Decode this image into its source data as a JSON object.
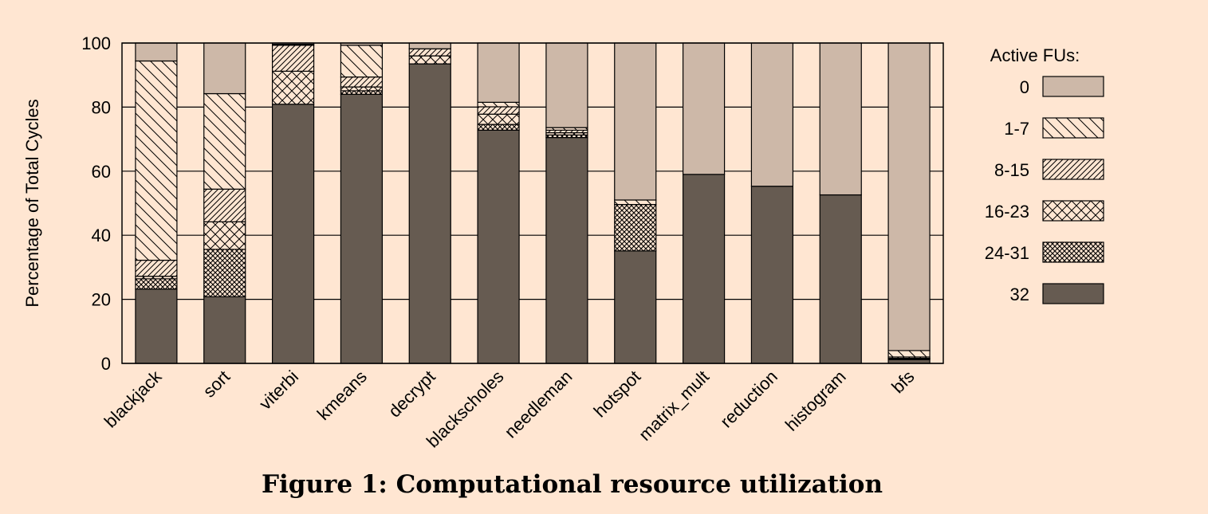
{
  "figure": {
    "caption": "Figure 1: Computational resource utilization"
  },
  "colors": {
    "background": "#ffe6d2",
    "zero": "#cdb8a8",
    "full": "#665b51",
    "line": "#000000"
  },
  "chart_data": {
    "type": "bar",
    "stacked": true,
    "title": "",
    "xlabel": "",
    "ylabel": "Percentage of Total Cycles",
    "ylim": [
      0,
      100
    ],
    "yticks": [
      0,
      20,
      40,
      60,
      80,
      100
    ],
    "grid": "horizontal",
    "legend_title": "Active FUs:",
    "legend_position": "right",
    "categories": [
      "blackjack",
      "sort",
      "viterbi",
      "kmeans",
      "decrypt",
      "blackscholes",
      "needleman",
      "hotspot",
      "matrix_mult",
      "reduction",
      "histogram",
      "bfs"
    ],
    "series": [
      {
        "name": "32",
        "pattern": "solid-dark",
        "values": [
          23.2,
          20.8,
          80.9,
          84.0,
          93.5,
          72.8,
          70.5,
          35.1,
          59.0,
          55.3,
          52.6,
          1.2
        ]
      },
      {
        "name": "24-31",
        "pattern": "dense-crosshatch",
        "values": [
          3.2,
          14.8,
          0.0,
          1.1,
          0.0,
          1.8,
          0.8,
          14.5,
          0.0,
          0.0,
          0.0,
          0.2
        ]
      },
      {
        "name": "16-23",
        "pattern": "crosshatch",
        "values": [
          0.8,
          8.6,
          10.3,
          1.2,
          2.5,
          3.2,
          0.7,
          0.0,
          0.0,
          0.0,
          0.0,
          0.2
        ]
      },
      {
        "name": "8-15",
        "pattern": "dense-forward-diagonal",
        "values": [
          5.0,
          10.2,
          8.1,
          3.1,
          2.2,
          2.3,
          0.8,
          0.0,
          0.0,
          0.0,
          0.0,
          0.4
        ]
      },
      {
        "name": "1-7",
        "pattern": "back-diagonal",
        "values": [
          62.2,
          29.8,
          0.3,
          9.9,
          0.0,
          1.4,
          0.8,
          1.4,
          0.0,
          0.0,
          0.0,
          2.0
        ]
      },
      {
        "name": "0",
        "pattern": "solid-light",
        "values": [
          5.6,
          15.8,
          0.4,
          0.7,
          1.8,
          18.5,
          26.4,
          49.0,
          41.0,
          44.7,
          47.4,
          96.0
        ]
      }
    ],
    "legend_order": [
      "0",
      "1-7",
      "8-15",
      "16-23",
      "24-31",
      "32"
    ]
  }
}
